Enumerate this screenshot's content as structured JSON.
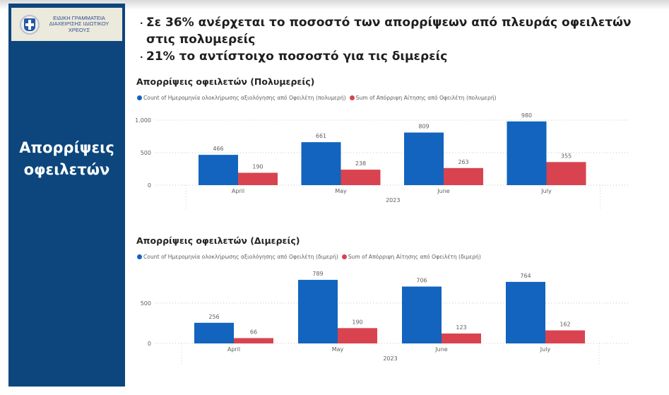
{
  "sidebar": {
    "logo_lines": [
      "ΕΙΔΙΚΗ ΓΡΑΜΜΑΤΕΙΑ",
      "ΔΙΑΧΕΙΡΙΣΗΣ ΙΔΙΩΤΙΚΟΥ",
      "ΧΡΕΟΥΣ"
    ],
    "title_line1": "Απορρίψεις",
    "title_line2": "οφειλετών",
    "color": "#0c467d"
  },
  "bullets": [
    "Σε 36% ανέρχεται το ποσοστό των απορρίψεων από πλευράς οφειλετών στις πολυμερείς",
    "21% το αντίστοιχο ποσοστό για τις διμερείς"
  ],
  "colors": {
    "series1": "#1264be",
    "series2": "#d9434f"
  },
  "chart_data": [
    {
      "type": "bar",
      "title": "Απορρίψεις οφειλετών (Πολυμερείς)",
      "categories": [
        "April",
        "May",
        "June",
        "July"
      ],
      "xlabel": "2023",
      "ylabel": "",
      "ylim": [
        0,
        1000
      ],
      "yticks": [
        0,
        500,
        1000
      ],
      "ytick_labels": [
        "0",
        "500",
        "1.000"
      ],
      "grid": true,
      "legend": "top-left",
      "series": [
        {
          "name": "Count of Ημερομηνία ολοκλήρωσης αξιολόγησης από Οφειλέτη (πολυμερή)",
          "values": [
            466,
            661,
            809,
            980
          ]
        },
        {
          "name": "Sum of Απόρριψη Αίτησης από Οφειλέτη (πολυμερή)",
          "values": [
            190,
            238,
            263,
            355
          ]
        }
      ]
    },
    {
      "type": "bar",
      "title": "Απορρίψεις οφειλετών (Διμερείς)",
      "categories": [
        "April",
        "May",
        "June",
        "July"
      ],
      "xlabel": "2023",
      "ylabel": "",
      "ylim": [
        0,
        800
      ],
      "yticks": [
        0,
        500
      ],
      "ytick_labels": [
        "0",
        "500"
      ],
      "grid": true,
      "legend": "top-left",
      "series": [
        {
          "name": "Count of Ημερομηνία ολοκλήρωσης αξιολόγησης από Οφειλέτη (διμερή)",
          "values": [
            256,
            789,
            706,
            764
          ]
        },
        {
          "name": "Sum of Απόρριψη Αίτησης από Οφειλέτη (διμερή)",
          "values": [
            66,
            190,
            123,
            162
          ]
        }
      ]
    }
  ]
}
